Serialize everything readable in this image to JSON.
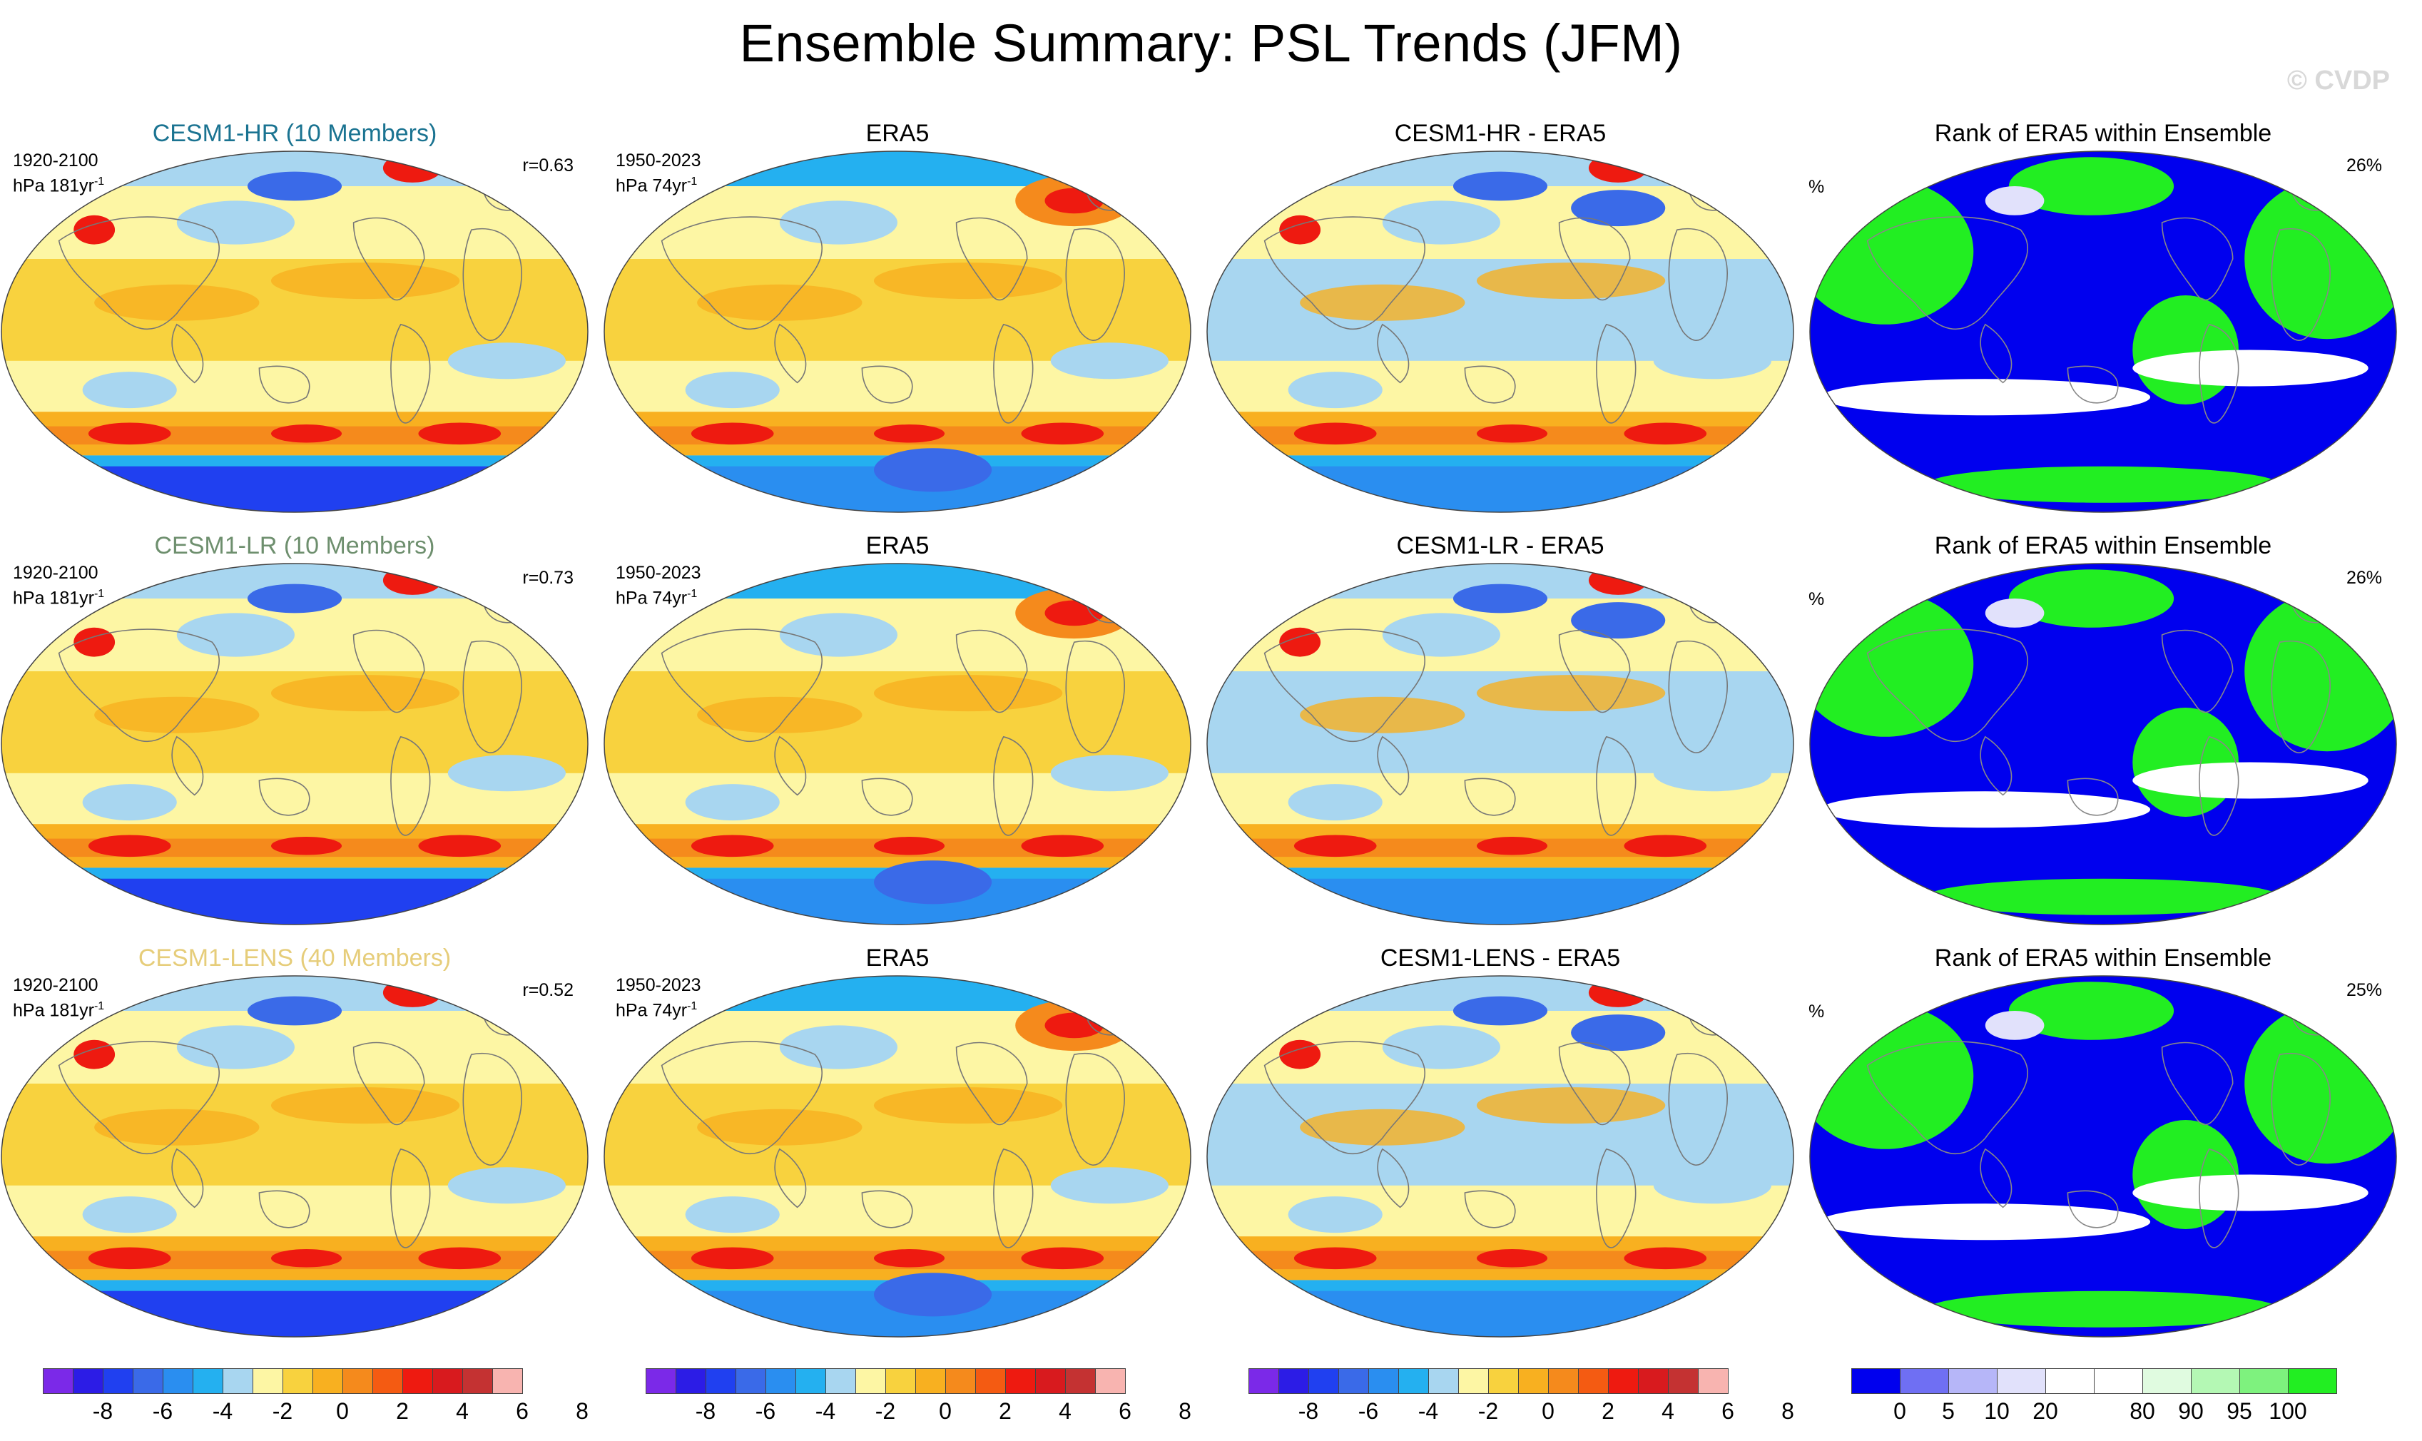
{
  "title": "Ensemble Summary: PSL Trends (JFM)",
  "watermark": "© CVDP",
  "rows": [
    {
      "model": {
        "title": "CESM1-HR (10 Members)",
        "title_color": "#1a7391",
        "period": "1920-2100",
        "units": "hPa 181yr",
        "units_exp": "-1",
        "r": "r=0.63"
      },
      "obs": {
        "title": "ERA5",
        "period": "1950-2023",
        "units": "hPa 74yr",
        "units_exp": "-1"
      },
      "diff": {
        "title": "CESM1-HR - ERA5"
      },
      "rank": {
        "title": "Rank of ERA5 within Ensemble",
        "unit": "%",
        "pct": "26%"
      }
    },
    {
      "model": {
        "title": "CESM1-LR (10 Members)",
        "title_color": "#6e8f6e",
        "period": "1920-2100",
        "units": "hPa 181yr",
        "units_exp": "-1",
        "r": "r=0.73"
      },
      "obs": {
        "title": "ERA5",
        "period": "1950-2023",
        "units": "hPa 74yr",
        "units_exp": "-1"
      },
      "diff": {
        "title": "CESM1-LR - ERA5"
      },
      "rank": {
        "title": "Rank of ERA5 within Ensemble",
        "unit": "%",
        "pct": "26%"
      }
    },
    {
      "model": {
        "title": "CESM1-LENS (40 Members)",
        "title_color": "#e6cd7a",
        "period": "1920-2100",
        "units": "hPa 181yr",
        "units_exp": "-1",
        "r": "r=0.52"
      },
      "obs": {
        "title": "ERA5",
        "period": "1950-2023",
        "units": "hPa 74yr",
        "units_exp": "-1"
      },
      "diff": {
        "title": "CESM1-LENS - ERA5"
      },
      "rank": {
        "title": "Rank of ERA5 within Ensemble",
        "unit": "%",
        "pct": "25%"
      }
    }
  ],
  "trend_colorbar": {
    "colors": [
      "#7b29e8",
      "#2c1ce6",
      "#2040f0",
      "#3a6ae8",
      "#2a8ef0",
      "#24b0f0",
      "#a8d6f0",
      "#fdf6a4",
      "#f8d23e",
      "#f8b020",
      "#f58a1c",
      "#f45b12",
      "#ee1a10",
      "#d81a1e",
      "#c43232",
      "#f8b4b0"
    ],
    "labels": [
      "-8",
      "-6",
      "-4",
      "-2",
      "0",
      "2",
      "4",
      "6",
      "8"
    ]
  },
  "rank_colorbar": {
    "colors": [
      "#0000ee",
      "#6f6ff3",
      "#b6b6f8",
      "#e1e1fb",
      "#ffffff",
      "#ffffff",
      "#e0fbe0",
      "#b4f8b4",
      "#7ef27e",
      "#22ee22"
    ],
    "labels": [
      "0",
      "5",
      "10",
      "20",
      "80",
      "90",
      "95",
      "100"
    ]
  }
}
